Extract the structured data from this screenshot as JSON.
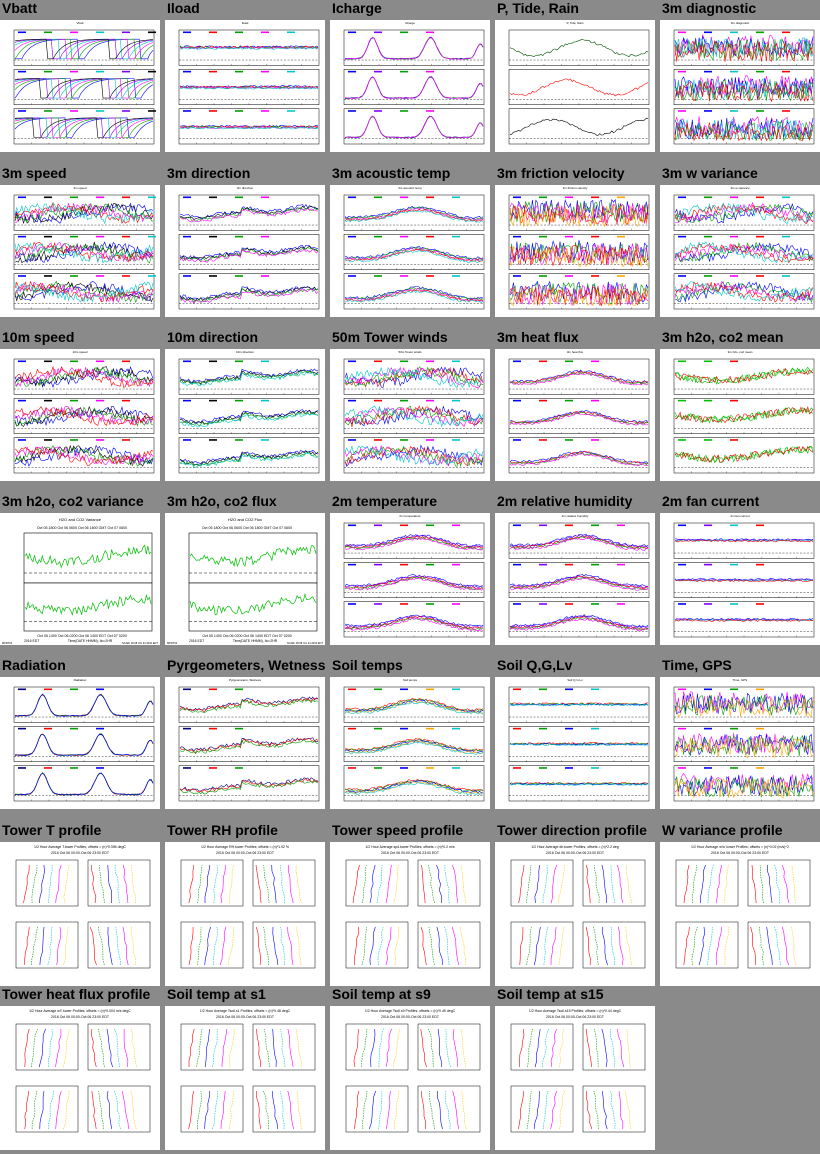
{
  "page": {
    "thumbnails": [
      {
        "title": "Vbatt",
        "kind": "ts3",
        "colors": [
          "#0000ff",
          "#00a000",
          "#ff00ff",
          "#00c8c8",
          "#8000ff",
          "#000000"
        ],
        "style": "sawtooth"
      },
      {
        "title": "Iload",
        "kind": "ts3",
        "colors": [
          "#0000ff",
          "#ff0000",
          "#00a000",
          "#ff00ff",
          "#00c8c8"
        ],
        "style": "flat"
      },
      {
        "title": "Icharge",
        "kind": "ts3",
        "colors": [
          "#0000ff",
          "#8000ff",
          "#00a000",
          "#ff00ff"
        ],
        "style": "peaks"
      },
      {
        "title": "P, Tide, Rain",
        "kind": "ts3",
        "colors": [
          "#005000",
          "#ff0000",
          "#000000"
        ],
        "style": "ptr"
      },
      {
        "title": "3m diagnostic",
        "kind": "ts3",
        "colors": [
          "#ff00ff",
          "#0000ff",
          "#00c8c8",
          "#00a000",
          "#ff0000"
        ],
        "style": "noise"
      },
      {
        "title": "3m speed",
        "kind": "ts3",
        "colors": [
          "#0000ff",
          "#000000",
          "#00a000",
          "#ff00ff",
          "#ff0000",
          "#00c8c8"
        ],
        "style": "wave"
      },
      {
        "title": "3m direction",
        "kind": "ts3",
        "colors": [
          "#0000ff",
          "#000000",
          "#00a000",
          "#ff00ff"
        ],
        "style": "step"
      },
      {
        "title": "3m acoustic temp",
        "kind": "ts3",
        "colors": [
          "#0000ff",
          "#00a000",
          "#ff00ff",
          "#ff0000",
          "#00c8c8"
        ],
        "style": "diurnal"
      },
      {
        "title": "3m friction velocity",
        "kind": "ts3",
        "colors": [
          "#0000ff",
          "#00a000",
          "#ff00ff",
          "#ff0000",
          "#ffa500"
        ],
        "style": "noise"
      },
      {
        "title": "3m w variance",
        "kind": "ts3",
        "colors": [
          "#0000ff",
          "#00a000",
          "#ff00ff",
          "#ff0000",
          "#00c8c8"
        ],
        "style": "wave"
      },
      {
        "title": "10m speed",
        "kind": "ts3",
        "colors": [
          "#0000ff",
          "#000000",
          "#00a000",
          "#ff00ff",
          "#ff0000"
        ],
        "style": "wave"
      },
      {
        "title": "10m direction",
        "kind": "ts3",
        "colors": [
          "#0000ff",
          "#000000",
          "#00a000",
          "#00c8c8"
        ],
        "style": "step"
      },
      {
        "title": "50m Tower winds",
        "kind": "ts3",
        "colors": [
          "#0000ff",
          "#ff0000",
          "#00a000",
          "#ff00ff",
          "#00c8c8"
        ],
        "style": "wave"
      },
      {
        "title": "3m heat flux",
        "kind": "ts3",
        "colors": [
          "#0000ff",
          "#ff0000",
          "#00a000",
          "#ff00ff"
        ],
        "style": "diurnal"
      },
      {
        "title": "3m h2o, co2 mean",
        "kind": "ts3",
        "colors": [
          "#00c000",
          "#00c000",
          "#ff0000"
        ],
        "style": "green"
      },
      {
        "title": "3m h2o, co2 variance",
        "kind": "ts2",
        "colors": [
          "#00c000",
          "#ff0000"
        ],
        "style": "green"
      },
      {
        "title": "3m h2o, co2 flux",
        "kind": "ts2",
        "colors": [
          "#00c000",
          "#ff0000"
        ],
        "style": "green"
      },
      {
        "title": "2m temperature",
        "kind": "ts3",
        "colors": [
          "#0000ff",
          "#8000ff",
          "#ff0000",
          "#00a000",
          "#ff00ff"
        ],
        "style": "diurnal"
      },
      {
        "title": "2m relative humidity",
        "kind": "ts3",
        "colors": [
          "#0000ff",
          "#8000ff",
          "#ff0000",
          "#00a000",
          "#ff00ff"
        ],
        "style": "diurnal"
      },
      {
        "title": "2m fan current",
        "kind": "ts3",
        "colors": [
          "#0000ff",
          "#8000ff",
          "#00c8c8",
          "#ff0000"
        ],
        "style": "flat"
      },
      {
        "title": "Radiation",
        "kind": "ts3",
        "colors": [
          "#000080",
          "#ff0000",
          "#00a000",
          "#0000ff"
        ],
        "style": "peaks"
      },
      {
        "title": "Pyrgeometers, Wetness",
        "kind": "ts3",
        "colors": [
          "#000080",
          "#ff0000",
          "#00a000"
        ],
        "style": "step"
      },
      {
        "title": "Soil temps",
        "kind": "ts3",
        "colors": [
          "#ff0000",
          "#00a000",
          "#0000ff",
          "#ffa500",
          "#00c8c8"
        ],
        "style": "diurnal"
      },
      {
        "title": "Soil Q,G,Lv",
        "kind": "ts3",
        "colors": [
          "#ff0000",
          "#00a000",
          "#0000ff",
          "#00c8c8"
        ],
        "style": "flat"
      },
      {
        "title": "Time, GPS",
        "kind": "ts3",
        "colors": [
          "#ff00ff",
          "#0000ff",
          "#00a000",
          "#ffa500"
        ],
        "style": "noise"
      },
      {
        "title": "Tower T profile",
        "kind": "prof",
        "colors": [
          "#ff0000",
          "#00a000",
          "#0000ff",
          "#00c8c8",
          "#ff00ff",
          "#ffcc00"
        ]
      },
      {
        "title": "Tower RH profile",
        "kind": "prof",
        "colors": [
          "#ff0000",
          "#00a000",
          "#0000ff",
          "#00c8c8",
          "#ff00ff",
          "#ffcc00"
        ]
      },
      {
        "title": "Tower speed profile",
        "kind": "prof",
        "colors": [
          "#ff0000",
          "#00a000",
          "#0000ff",
          "#00c8c8",
          "#ff00ff",
          "#ffcc00"
        ]
      },
      {
        "title": "Tower direction profile",
        "kind": "prof",
        "colors": [
          "#ff0000",
          "#00a000",
          "#0000ff",
          "#00c8c8",
          "#ff00ff",
          "#ffcc00"
        ]
      },
      {
        "title": "W variance profile",
        "kind": "prof",
        "colors": [
          "#ff0000",
          "#00a000",
          "#0000ff",
          "#00c8c8",
          "#ff00ff",
          "#ffcc00"
        ]
      },
      {
        "title": "Tower heat flux profile",
        "kind": "prof",
        "colors": [
          "#ff0000",
          "#00a000",
          "#0000ff",
          "#00c8c8",
          "#ff00ff",
          "#ffcc00"
        ]
      },
      {
        "title": "Soil temp at s1",
        "kind": "prof",
        "colors": [
          "#ff0000",
          "#00a000",
          "#0000ff",
          "#00c8c8",
          "#ff00ff",
          "#ffcc00"
        ]
      },
      {
        "title": "Soil temp at s9",
        "kind": "prof",
        "colors": [
          "#ff0000",
          "#00a000",
          "#0000ff",
          "#00c8c8",
          "#ff00ff",
          "#ffcc00"
        ]
      },
      {
        "title": "Soil temp at s15",
        "kind": "prof",
        "colors": [
          "#ff0000",
          "#00a000",
          "#0000ff",
          "#00c8c8",
          "#ff00ff",
          "#ffcc00"
        ]
      }
    ]
  },
  "text": {
    "co2_var_title": "H2O and CO2 Variance",
    "co2_flux_title": "H2O and CO2 Flux",
    "time_top": "Oct 05 1800   Oct 06 0600   Oct 06 1800 GMT   Oct 07 0600",
    "time_bottom": "Oct 05 1400   Oct 06 0200   Oct 06 1400 EDT   Oct 07 0200",
    "year_label": "2016 EDT",
    "time_axis": "Time(DATE HHMM), Ito=2HR",
    "site_label": "MPRT04",
    "ncar_label": "NCAR/ 18:08 Oct 24 2016 EDT",
    "prof_titles": [
      "1/2 Hour Average T.tower Profiles; offsets = (n)*0.396 degC",
      "1/2 Hour Average RH.tower Profiles; offsets = (n)*1.92 %",
      "1/2 Hour Average spd.tower Profiles; offsets = (n)*0.2 m/s",
      "1/2 Hour Average dir.tower Profiles; offsets = (n)*2.2 deg",
      "1/2 Hour Average w'w'.tower Profiles; offsets = (n)*0.02 (m/s)^2",
      "1/2 Hour Average w't'.tower Profiles; offsets = (n)*0.004 m/s degC",
      "1/2 Hour Average Tsoil.s1 Profiles; offsets = (n)*0.48 degC",
      "1/2 Hour Average Tsoil.s9 Profiles; offsets = (n)*0.45 degC",
      "1/2 Hour Average Tsoil.s15 Profiles; offsets = (n)*0.44 degC"
    ],
    "prof_date": "2016 Oct 06 00:00-Oct 06 23:00 EDT"
  }
}
